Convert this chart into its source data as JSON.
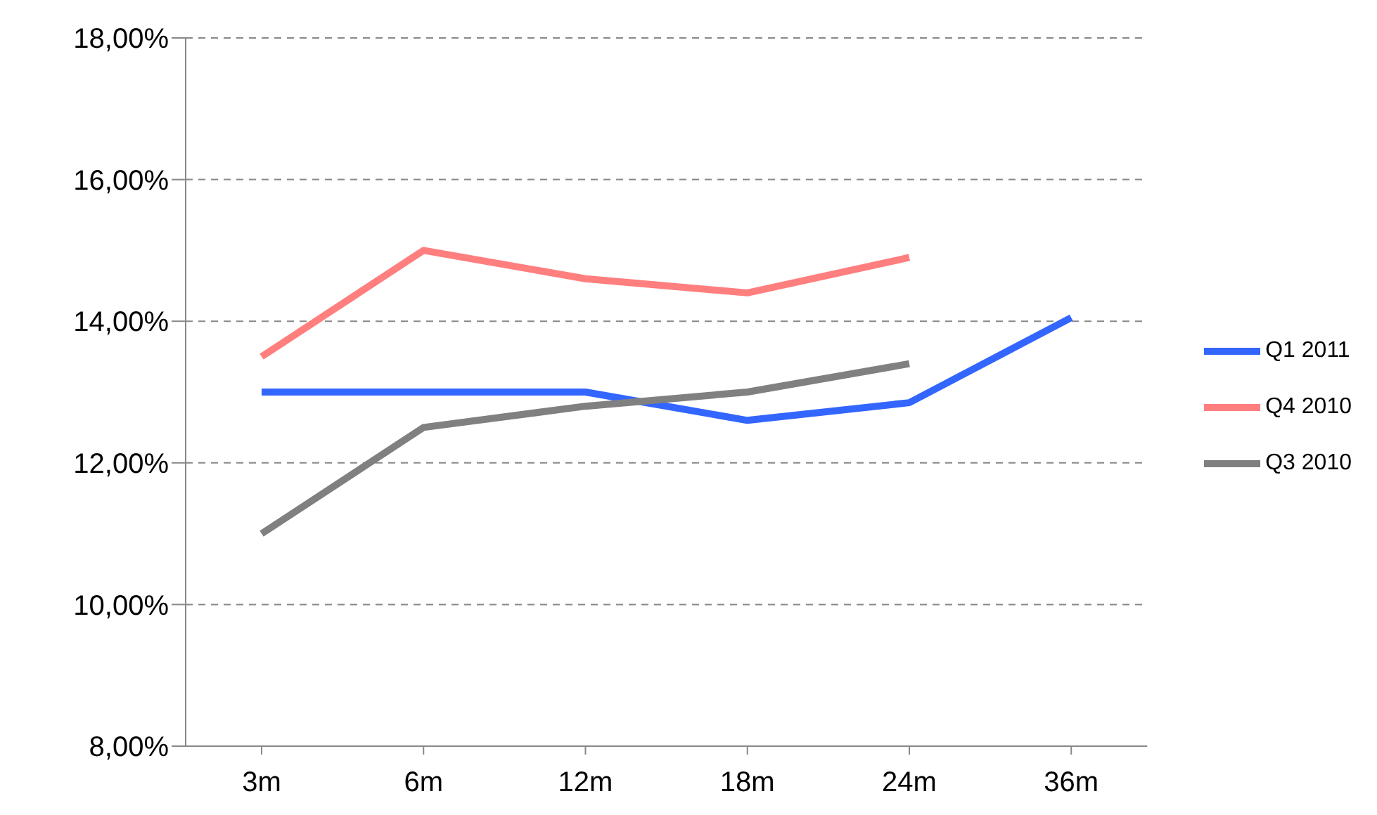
{
  "chart_data": {
    "type": "line",
    "categories": [
      "3m",
      "6m",
      "12m",
      "18m",
      "24m",
      "36m"
    ],
    "series": [
      {
        "name": "Q1 2011",
        "color": "#3366ff",
        "values": [
          13.0,
          13.0,
          13.0,
          12.6,
          12.85,
          14.05
        ]
      },
      {
        "name": "Q4 2010",
        "color": "#ff7f7f",
        "values": [
          13.5,
          15.0,
          14.6,
          14.4,
          14.9,
          null
        ]
      },
      {
        "name": "Q3 2010",
        "color": "#808080",
        "values": [
          11.0,
          12.5,
          12.8,
          13.0,
          13.4,
          null
        ]
      }
    ],
    "ylim": [
      8,
      18
    ],
    "yticks": [
      {
        "value": 8,
        "label": "8,00%"
      },
      {
        "value": 10,
        "label": "10,00%"
      },
      {
        "value": 12,
        "label": "12,00%"
      },
      {
        "value": 14,
        "label": "14,00%"
      },
      {
        "value": 16,
        "label": "16,00%"
      },
      {
        "value": 18,
        "label": "18,00%"
      }
    ],
    "grid": "y",
    "legend": "right",
    "marker": "none",
    "line_style": "solid"
  }
}
